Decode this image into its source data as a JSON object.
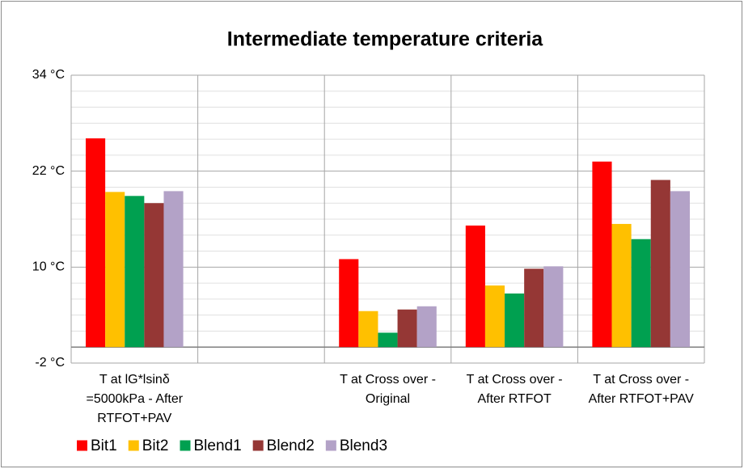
{
  "chart_data": {
    "type": "bar",
    "title": "Intermediate temperature criteria",
    "categories": [
      "T at lG*lsinδ =5000kPa - After RTFOT+PAV",
      null,
      "T at Cross over - Original",
      "T at Cross over - After RTFOT",
      "T at Cross over - After RTFOT+PAV"
    ],
    "series": [
      {
        "name": "Bit1",
        "color": "#ff0000",
        "values": [
          26.1,
          null,
          11.0,
          15.2,
          23.2
        ]
      },
      {
        "name": "Bit2",
        "color": "#ffc000",
        "values": [
          19.4,
          null,
          4.5,
          7.7,
          15.4
        ]
      },
      {
        "name": "Blend1",
        "color": "#00a050",
        "values": [
          18.9,
          null,
          1.8,
          6.7,
          13.5
        ]
      },
      {
        "name": "Blend2",
        "color": "#953735",
        "values": [
          18.0,
          null,
          4.7,
          9.8,
          20.9
        ]
      },
      {
        "name": "Blend3",
        "color": "#b3a2c7",
        "values": [
          19.5,
          null,
          5.1,
          10.1,
          19.5
        ]
      }
    ],
    "ylim": [
      -2,
      34
    ],
    "yticks": [
      {
        "value": -2,
        "label": "-2 °C"
      },
      {
        "value": 10,
        "label": "10 °C"
      },
      {
        "value": 22,
        "label": "22 °C"
      },
      {
        "value": 34,
        "label": "34 °C"
      }
    ],
    "yminorticks": [
      0,
      2,
      4,
      6,
      8,
      12,
      14,
      16,
      18,
      20,
      24,
      26,
      28,
      30,
      32
    ],
    "grid": true,
    "legend": "bottom"
  }
}
